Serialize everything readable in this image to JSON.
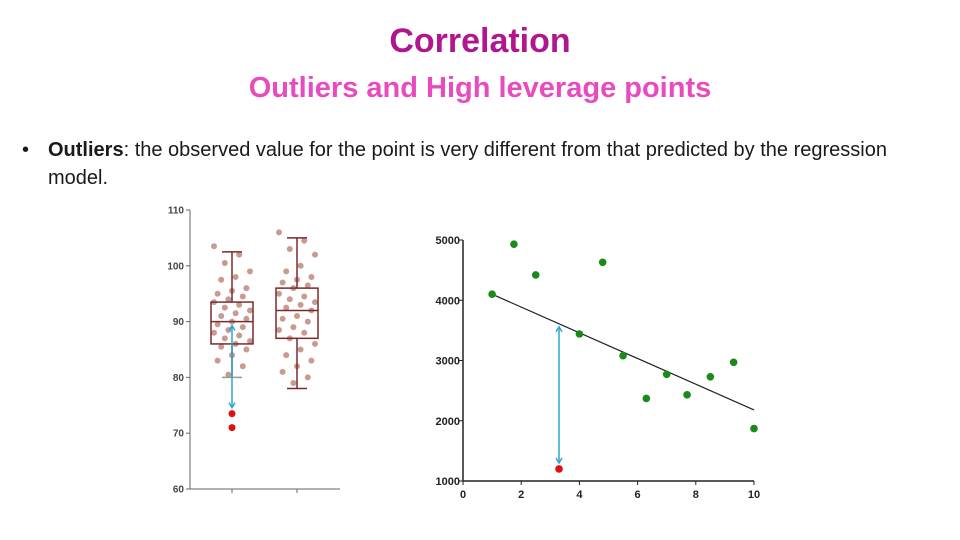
{
  "slide": {
    "title": "Correlation",
    "subtitle": "Outliers and High leverage points",
    "bullet_marker": "•",
    "bullet_term": "Outliers",
    "bullet_text": ": the observed value for the point is very different from that predicted by the regression model."
  },
  "colors": {
    "title": "#b0168f",
    "subtitle": "#e84bbf",
    "box_outline": "#7a2a2a",
    "jitter_points": "#c99a90",
    "outlier_point": "#e01010",
    "scatter_points": "#1a8a1a",
    "arrow": "#2aa8d0"
  },
  "chart_data": [
    {
      "type": "box",
      "ylim": [
        60,
        110
      ],
      "yticks": [
        "60",
        "70",
        "80",
        "90",
        "100",
        "110"
      ],
      "boxes": [
        {
          "q1": 86,
          "median": 90,
          "q3": 93.5,
          "whisker_low": 80,
          "whisker_high": 102.5,
          "points": [
            103.5,
            102,
            100.5,
            99,
            98,
            97.5,
            96,
            95.5,
            95,
            94.5,
            94,
            93.5,
            93,
            92.5,
            92,
            91.5,
            91,
            90.5,
            90,
            89.5,
            89,
            88.5,
            88,
            87.5,
            87,
            86.5,
            86,
            85.5,
            85,
            84,
            83,
            82,
            80.5
          ]
        },
        {
          "q1": 87,
          "median": 92,
          "q3": 96,
          "whisker_low": 78,
          "whisker_high": 105,
          "points": [
            106,
            104.5,
            103,
            102,
            100,
            99,
            98,
            97.5,
            97,
            96.5,
            96,
            95,
            94.5,
            94,
            93.5,
            93,
            92.5,
            92,
            91,
            90.5,
            90,
            89,
            88.5,
            88,
            87,
            86,
            85,
            84,
            83,
            82,
            81,
            80,
            79
          ]
        }
      ],
      "outliers": [
        73.5,
        71
      ]
    },
    {
      "type": "scatter",
      "xlim": [
        0,
        10
      ],
      "ylim": [
        1000,
        5000
      ],
      "xticks": [
        "0",
        "2",
        "4",
        "6",
        "8",
        "10"
      ],
      "yticks": [
        "1000",
        "2000",
        "3000",
        "4000",
        "5000"
      ],
      "points": [
        [
          1,
          4100
        ],
        [
          1.75,
          4930
        ],
        [
          2.5,
          4420
        ],
        [
          4.8,
          4630
        ],
        [
          4,
          3440
        ],
        [
          5.5,
          3080
        ],
        [
          6.3,
          2370
        ],
        [
          7,
          2770
        ],
        [
          7.7,
          2430
        ],
        [
          8.5,
          2730
        ],
        [
          9.3,
          2970
        ],
        [
          10,
          1870
        ]
      ],
      "outliers": [
        [
          3.3,
          1200
        ]
      ],
      "regression_line": [
        [
          1,
          4100
        ],
        [
          10,
          2180
        ]
      ]
    }
  ]
}
